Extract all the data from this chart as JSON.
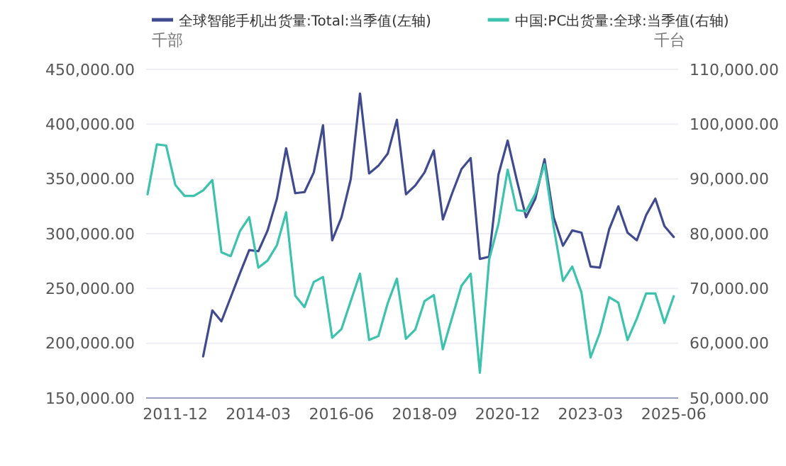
{
  "chart_data": {
    "type": "line",
    "legend": "top",
    "grid": "y",
    "ylabel": "千部",
    "y2label": "千台",
    "x": [
      "2011-03",
      "2011-06",
      "2011-09",
      "2011-12",
      "2012-03",
      "2012-06",
      "2012-09",
      "2012-12",
      "2013-03",
      "2013-06",
      "2013-09",
      "2013-12",
      "2014-03",
      "2014-06",
      "2014-09",
      "2014-12",
      "2015-03",
      "2015-06",
      "2015-09",
      "2015-12",
      "2016-03",
      "2016-06",
      "2016-09",
      "2016-12",
      "2017-03",
      "2017-06",
      "2017-09",
      "2017-12",
      "2018-03",
      "2018-06",
      "2018-09",
      "2018-12",
      "2019-03",
      "2019-06",
      "2019-09",
      "2019-12",
      "2020-03",
      "2020-06",
      "2020-09",
      "2020-12",
      "2021-03",
      "2021-06",
      "2021-09",
      "2021-12",
      "2022-03",
      "2022-06",
      "2022-09",
      "2022-12",
      "2023-03",
      "2023-06",
      "2023-09",
      "2023-12",
      "2024-03",
      "2024-06",
      "2024-09",
      "2024-12",
      "2025-03",
      "2025-06"
    ],
    "xlim": [
      "2011-02-15",
      "2025-07-15"
    ],
    "xticks": [
      "2011-12",
      "2014-03",
      "2016-06",
      "2018-09",
      "2020-12",
      "2023-03",
      "2025-06"
    ],
    "ylim": [
      150000,
      450000
    ],
    "yticks": [
      {
        "value": 150000,
        "label": "150,000.00"
      },
      {
        "value": 200000,
        "label": "200,000.00"
      },
      {
        "value": 250000,
        "label": "250,000.00"
      },
      {
        "value": 300000,
        "label": "300,000.00"
      },
      {
        "value": 350000,
        "label": "350,000.00"
      },
      {
        "value": 400000,
        "label": "400,000.00"
      },
      {
        "value": 450000,
        "label": "450,000.00"
      }
    ],
    "y2lim": [
      50000,
      110000
    ],
    "y2ticks": [
      {
        "value": 50000,
        "label": "50,000.00"
      },
      {
        "value": 60000,
        "label": "60,000.00"
      },
      {
        "value": 70000,
        "label": "70,000.00"
      },
      {
        "value": 80000,
        "label": "80,000.00"
      },
      {
        "value": 90000,
        "label": "90,000.00"
      },
      {
        "value": 100000,
        "label": "100,000.00"
      },
      {
        "value": 110000,
        "label": "110,000.00"
      }
    ],
    "series": [
      {
        "name": "全球智能手机出货量:Total:当季值(左轴)",
        "color": "#3f4a8f",
        "values": [
          null,
          null,
          null,
          null,
          null,
          null,
          188000,
          230000,
          220000,
          242000,
          264000,
          285000,
          284000,
          303000,
          332000,
          378000,
          337000,
          338000,
          356000,
          399000,
          294000,
          315000,
          350000,
          428000,
          355000,
          362000,
          373000,
          404000,
          336000,
          344000,
          356000,
          376000,
          313000,
          337000,
          359000,
          369000,
          277000,
          279000,
          354000,
          385000,
          349000,
          315000,
          332000,
          368000,
          315000,
          289000,
          303000,
          301000,
          270000,
          269000,
          304000,
          325000,
          301000,
          294000,
          317000,
          332000,
          307000,
          297000
        ]
      },
      {
        "name": "中国:PC出货量:全球:当季值(右轴)",
        "color": "#3cc2ad",
        "axis": "y2",
        "values": [
          87200,
          96300,
          96100,
          88900,
          86900,
          86900,
          87900,
          89800,
          76600,
          75900,
          80500,
          83000,
          73800,
          75100,
          77900,
          83900,
          68700,
          66600,
          71200,
          72100,
          61000,
          62600,
          67700,
          72700,
          60600,
          61300,
          67300,
          71800,
          60800,
          62500,
          67700,
          68800,
          58900,
          64700,
          70500,
          72700,
          54600,
          75300,
          81800,
          91700,
          84300,
          84100,
          87300,
          92700,
          81300,
          71400,
          74000,
          69300,
          57400,
          61900,
          68400,
          67400,
          60600,
          64500,
          69100,
          69100,
          63700,
          68600
        ]
      }
    ]
  }
}
